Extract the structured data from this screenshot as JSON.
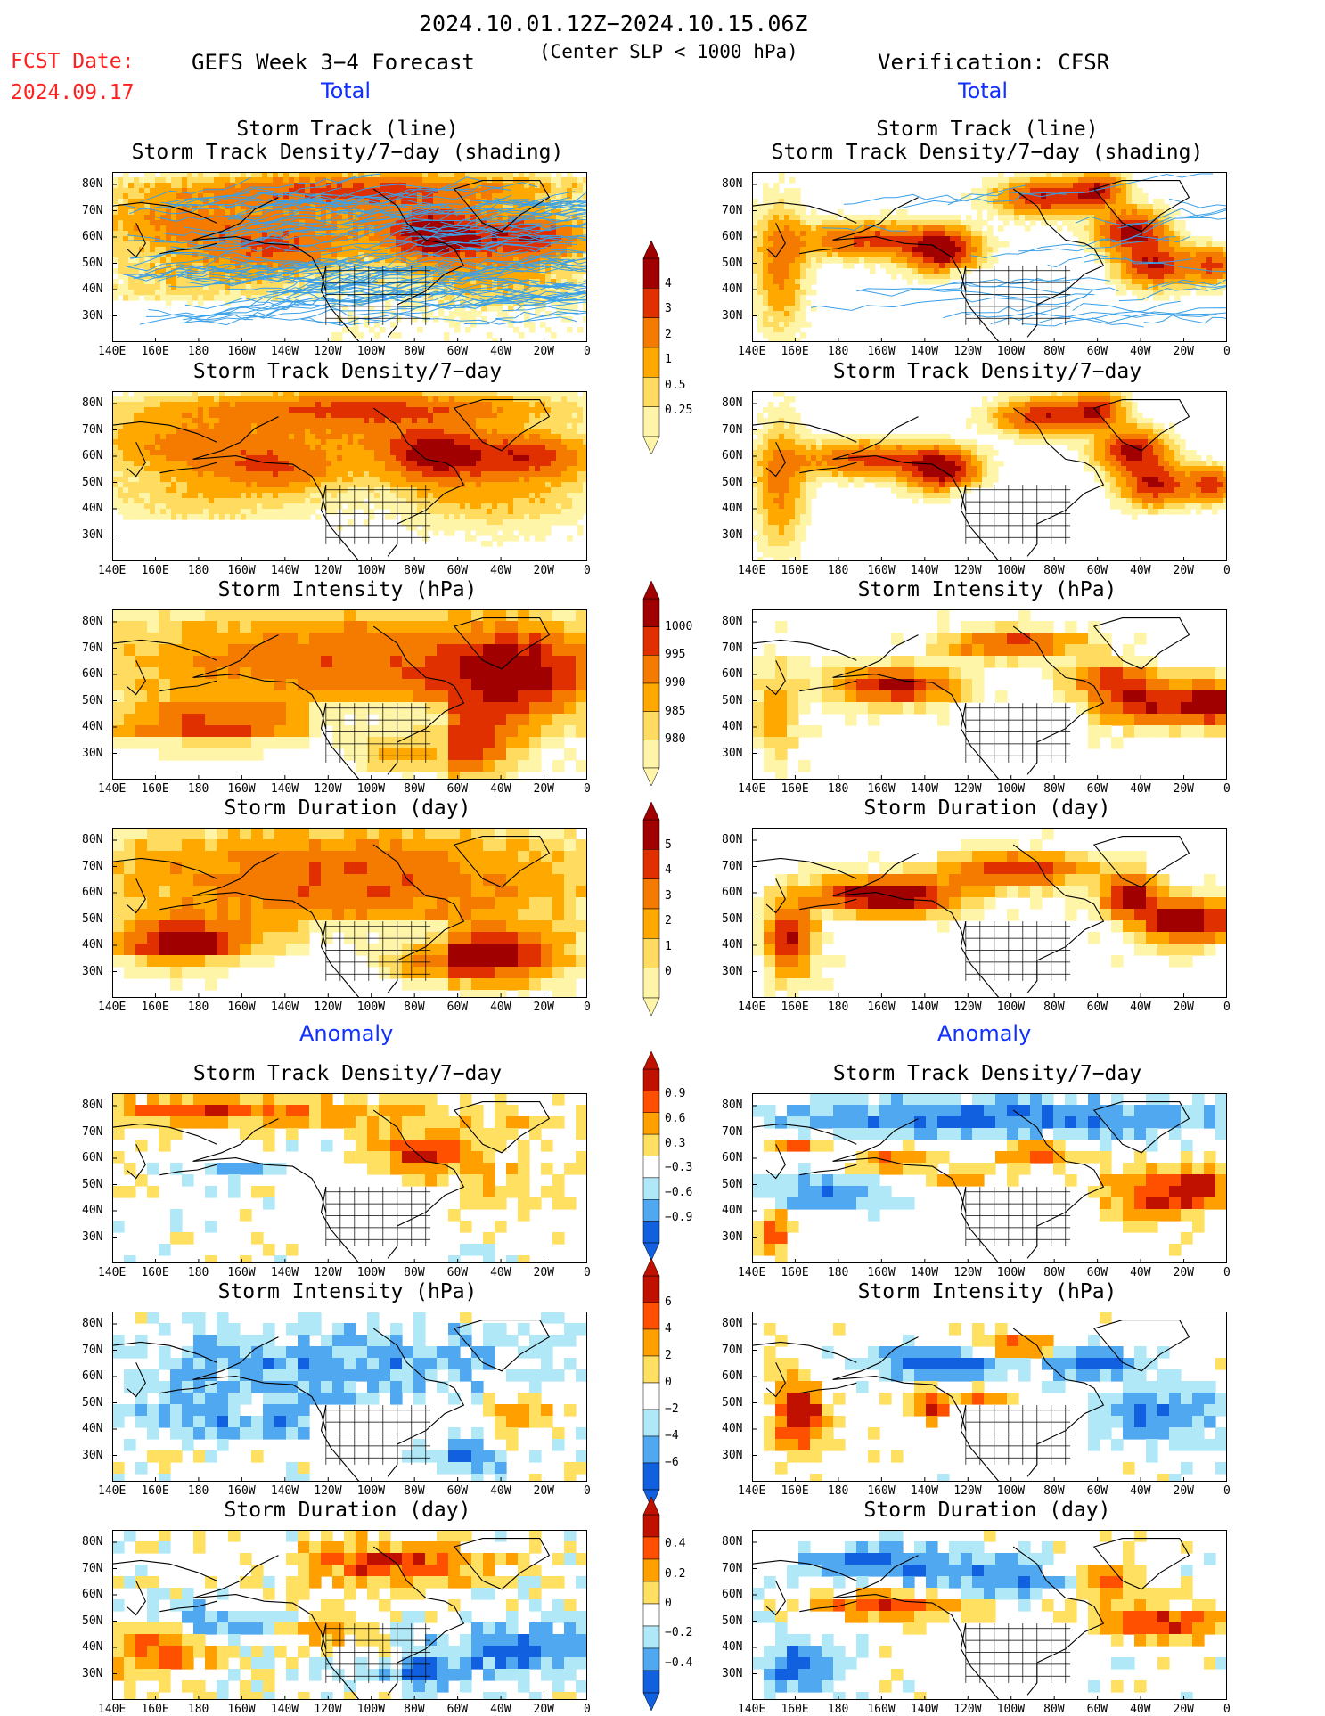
{
  "header": {
    "period": "2024.10.01.12Z−2024.10.15.06Z",
    "criteria": "(Center SLP < 1000 hPa)",
    "fcst_label": "FCST Date:",
    "fcst_date": "2024.09.17",
    "left_title": "GEFS Week 3−4 Forecast",
    "right_title": "Verification: CFSR"
  },
  "sections": {
    "total": "Total",
    "anomaly": "Anomaly"
  },
  "panel_titles": {
    "track_line": "Storm Track (line)",
    "track_density_shading": "Storm Track Density/7−day (shading)",
    "track_density": "Storm Track Density/7−day",
    "intensity": "Storm Intensity (hPa)",
    "duration": "Storm Duration (day)"
  },
  "axes": {
    "lat_labels": [
      "80N",
      "70N",
      "60N",
      "50N",
      "40N",
      "30N"
    ],
    "lon_labels": [
      "140E",
      "160E",
      "180",
      "160W",
      "140W",
      "120W",
      "100W",
      "80W",
      "60W",
      "40W",
      "20W",
      "0"
    ]
  },
  "colorbars": {
    "density": [
      "4",
      "3",
      "2",
      "1",
      "0.5",
      "0.25"
    ],
    "intensity": [
      "1000",
      "995",
      "990",
      "985",
      "980"
    ],
    "duration": [
      "5",
      "4",
      "3",
      "2",
      "1",
      "0"
    ],
    "density_anom": [
      "0.9",
      "0.6",
      "0.3",
      "−0.3",
      "−0.6",
      "−0.9"
    ],
    "intensity_anom": [
      "6",
      "4",
      "2",
      "0",
      "−2",
      "−4",
      "−6"
    ],
    "duration_anom": [
      "0.4",
      "0.2",
      "0",
      "−0.2",
      "−0.4"
    ]
  },
  "colors": {
    "warm": [
      "#fff5a8",
      "#ffdc60",
      "#ffa800",
      "#f47a00",
      "#e03000",
      "#a00000"
    ],
    "anom": [
      "#1060e0",
      "#50a8f0",
      "#b0e8f8",
      "#ffffff",
      "#ffe060",
      "#ffa000",
      "#ff5000",
      "#c01000"
    ],
    "track_line": "#3aa0e8",
    "title_blue": "#1030ff",
    "fcst_red": "#ff2020"
  }
}
